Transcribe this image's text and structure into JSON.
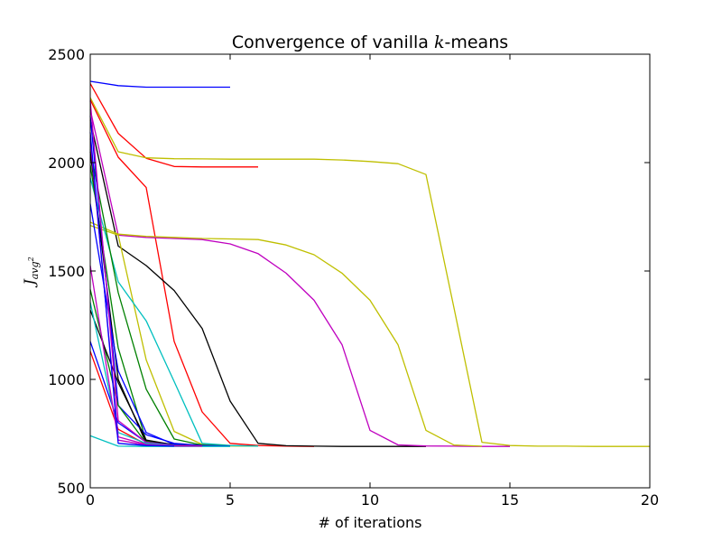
{
  "chart_data": {
    "type": "line",
    "title": {
      "prefix": "Convergence of vanilla ",
      "math": "k",
      "suffix": "-means"
    },
    "xlabel": "# of iterations",
    "ylabel": {
      "base": "J",
      "subscript": "avg",
      "superscript": "2"
    },
    "xlim": [
      0,
      20
    ],
    "ylim": [
      500,
      2500
    ],
    "xticks": [
      0,
      5,
      10,
      15,
      20
    ],
    "yticks": [
      500,
      1000,
      1500,
      2000,
      2500
    ],
    "grid": false,
    "legend": "none",
    "series": [
      {
        "color": "#0000ff",
        "x": [
          0,
          1,
          2,
          3,
          4,
          5
        ],
        "y": [
          2375,
          2355,
          2348,
          2348,
          2348,
          2348
        ]
      },
      {
        "color": "#ff0000",
        "x": [
          0,
          1,
          2,
          3,
          4,
          5,
          6
        ],
        "y": [
          2365,
          2135,
          2020,
          1982,
          1980,
          1980,
          1980
        ]
      },
      {
        "color": "#bfbf00",
        "x": [
          0,
          1,
          2,
          3,
          4,
          5,
          6,
          7,
          8,
          9,
          10,
          11,
          12,
          13,
          14,
          15,
          16,
          17,
          18,
          19,
          20
        ],
        "y": [
          2300,
          2050,
          2022,
          2018,
          2017,
          2016,
          2016,
          2016,
          2016,
          2012,
          2005,
          1995,
          1945,
          1330,
          710,
          695,
          692,
          692,
          691,
          691,
          691
        ]
      },
      {
        "color": "#ff0000",
        "x": [
          0,
          1,
          2,
          3,
          4,
          5,
          6,
          7,
          8
        ],
        "y": [
          2290,
          2025,
          1885,
          1175,
          850,
          705,
          695,
          692,
          691
        ]
      },
      {
        "color": "#000000",
        "x": [
          0,
          1,
          2,
          3,
          4,
          5,
          6,
          7,
          8,
          9,
          10,
          11,
          12
        ],
        "y": [
          2195,
          1615,
          1525,
          1410,
          1235,
          900,
          705,
          694,
          692,
          691,
          691,
          691,
          691
        ]
      },
      {
        "color": "#bf00bf",
        "x": [
          0,
          1,
          2,
          3,
          4,
          5,
          6,
          7,
          8,
          9,
          10,
          11,
          12,
          13,
          14,
          15
        ],
        "y": [
          2245,
          1665,
          1655,
          1650,
          1645,
          1625,
          1580,
          1490,
          1365,
          1160,
          765,
          698,
          693,
          692,
          691,
          691
        ]
      },
      {
        "color": "#bfbf00",
        "x": [
          0,
          1,
          2,
          3,
          4,
          5,
          6,
          7,
          8,
          9,
          10,
          11,
          12,
          13,
          14
        ],
        "y": [
          1725,
          1670,
          1660,
          1655,
          1650,
          1648,
          1645,
          1620,
          1575,
          1490,
          1365,
          1160,
          765,
          697,
          692
        ]
      },
      {
        "color": "#bfbf00",
        "x": [
          0,
          1,
          2,
          3,
          4,
          5,
          6
        ],
        "y": [
          1710,
          1665,
          1090,
          760,
          700,
          693,
          692
        ]
      },
      {
        "color": "#00bfbf",
        "x": [
          0,
          1,
          2,
          3,
          4,
          5,
          6
        ],
        "y": [
          1930,
          1450,
          1270,
          990,
          705,
          695,
          692
        ]
      },
      {
        "color": "#008000",
        "x": [
          0,
          1,
          2,
          3,
          4,
          5
        ],
        "y": [
          2060,
          1400,
          955,
          725,
          697,
          693
        ]
      },
      {
        "color": "#008000",
        "x": [
          0,
          1,
          2,
          3,
          4,
          5
        ],
        "y": [
          1990,
          1145,
          715,
          700,
          695,
          692
        ]
      },
      {
        "color": "#000000",
        "x": [
          0,
          1,
          2,
          3,
          4,
          5
        ],
        "y": [
          2050,
          1000,
          705,
          695,
          692,
          692
        ]
      },
      {
        "color": "#0000ff",
        "x": [
          0,
          1,
          2,
          3,
          4,
          5
        ],
        "y": [
          1810,
          1040,
          755,
          700,
          693,
          692
        ]
      },
      {
        "color": "#0000ff",
        "x": [
          0,
          1,
          2,
          3,
          4,
          5
        ],
        "y": [
          2215,
          880,
          745,
          705,
          695,
          692
        ]
      },
      {
        "color": "#008000",
        "x": [
          0,
          1,
          2,
          3,
          4
        ],
        "y": [
          1415,
          880,
          705,
          696,
          692
        ]
      },
      {
        "color": "#000000",
        "x": [
          0,
          1,
          2,
          3,
          4
        ],
        "y": [
          1320,
          985,
          720,
          698,
          693
        ]
      },
      {
        "color": "#0000ff",
        "x": [
          0,
          1,
          2,
          3,
          4
        ],
        "y": [
          1175,
          800,
          710,
          697,
          692
        ]
      },
      {
        "color": "#ff0000",
        "x": [
          0,
          1,
          2,
          3,
          4
        ],
        "y": [
          1130,
          770,
          700,
          695,
          692
        ]
      },
      {
        "color": "#bf00bf",
        "x": [
          0,
          1,
          2,
          3,
          4
        ],
        "y": [
          2285,
          810,
          710,
          696,
          692
        ]
      },
      {
        "color": "#00bfbf",
        "x": [
          0,
          1,
          2,
          3,
          4
        ],
        "y": [
          1355,
          755,
          705,
          695,
          692
        ]
      },
      {
        "color": "#bf00bf",
        "x": [
          0,
          1,
          2,
          3,
          4
        ],
        "y": [
          2110,
          735,
          700,
          694,
          692
        ]
      },
      {
        "color": "#00bfbf",
        "x": [
          0,
          1,
          2,
          3,
          4,
          5
        ],
        "y": [
          740,
          692,
          691,
          691,
          691,
          691
        ]
      },
      {
        "color": "#bf00bf",
        "x": [
          0,
          1,
          2,
          3,
          4
        ],
        "y": [
          1525,
          720,
          697,
          693,
          692
        ]
      },
      {
        "color": "#0000ff",
        "x": [
          0,
          1,
          2,
          3
        ],
        "y": [
          2140,
          705,
          695,
          692
        ]
      }
    ]
  }
}
